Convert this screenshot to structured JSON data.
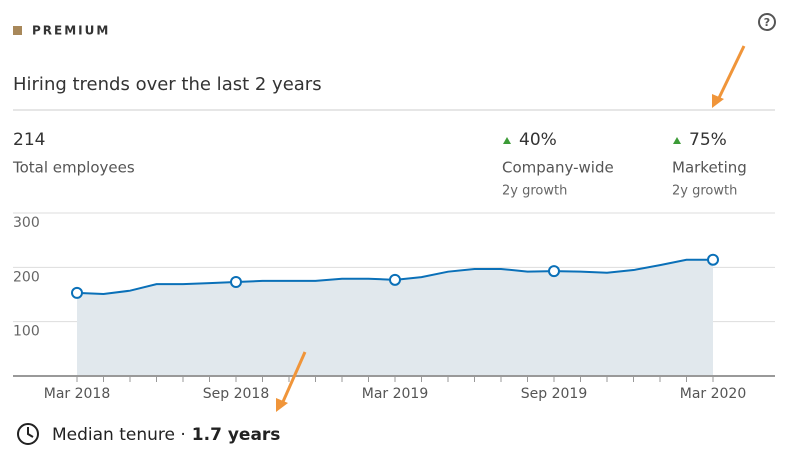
{
  "header": {
    "badge": "PREMIUM",
    "title": "Hiring trends over the last 2 years"
  },
  "stats": [
    {
      "value": 214,
      "label": "Total employees"
    },
    {
      "value": "40%",
      "label": "Company-wide",
      "note": "2y growth"
    },
    {
      "value": "75%",
      "label": "Marketing",
      "note": "2y growth"
    }
  ],
  "chart_data": {
    "type": "area",
    "categories": [
      "Mar 2018",
      null,
      null,
      null,
      null,
      null,
      "Sep 2018",
      null,
      null,
      null,
      null,
      null,
      "Mar 2019",
      null,
      null,
      null,
      null,
      null,
      "Sep 2019",
      null,
      null,
      null,
      null,
      null,
      "Mar 2020"
    ],
    "values": [
      153,
      151,
      157,
      169,
      169,
      171,
      173,
      175,
      175,
      175,
      179,
      179,
      177,
      182,
      192,
      197,
      197,
      192,
      193,
      192,
      190,
      195,
      204,
      214,
      214
    ],
    "color": "#0a70b8",
    "fill": "#e1e8ed",
    "ylim": [
      0,
      300
    ],
    "yticks": [
      100,
      200,
      300
    ],
    "grid": true
  },
  "footer": {
    "label": "Median tenure ·",
    "value": "1.7 years"
  }
}
